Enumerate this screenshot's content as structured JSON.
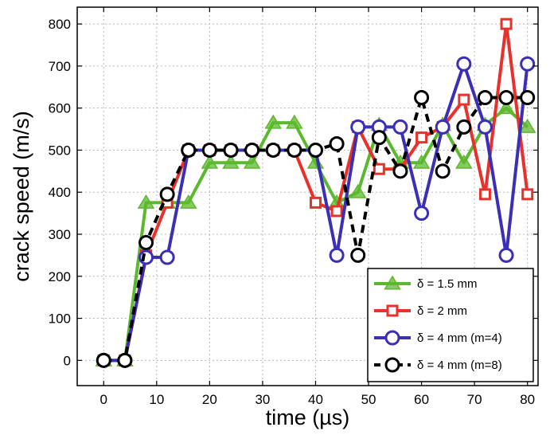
{
  "chart_data": {
    "type": "line",
    "title": "",
    "xlabel": "time (µs)",
    "ylabel": "crack speed (m/s)",
    "xlim": [
      -5,
      82
    ],
    "ylim": [
      -60,
      840
    ],
    "xticks": [
      0,
      10,
      20,
      30,
      40,
      50,
      60,
      70,
      80
    ],
    "yticks": [
      0,
      100,
      200,
      300,
      400,
      500,
      600,
      700,
      800
    ],
    "grid": true,
    "legend_position": "bottom-right",
    "series": [
      {
        "name": "δ = 1.5 mm",
        "color": "#5cb82e",
        "marker": "triangle",
        "line_style": "solid",
        "x": [
          0,
          4,
          8,
          12,
          16,
          20,
          24,
          28,
          32,
          36,
          40,
          44,
          48,
          52,
          56,
          60,
          64,
          68,
          72,
          76,
          80
        ],
        "y": [
          0,
          0,
          375,
          375,
          375,
          470,
          470,
          470,
          565,
          565,
          470,
          375,
          400,
          560,
          470,
          470,
          560,
          470,
          560,
          600,
          555
        ]
      },
      {
        "name": "δ = 2 mm",
        "color": "#e8312a",
        "marker": "square",
        "line_style": "solid",
        "x": [
          0,
          4,
          8,
          12,
          16,
          20,
          24,
          28,
          32,
          36,
          40,
          44,
          48,
          52,
          56,
          60,
          64,
          68,
          72,
          76,
          80
        ],
        "y": [
          0,
          0,
          250,
          375,
          500,
          500,
          500,
          500,
          500,
          500,
          375,
          355,
          555,
          455,
          455,
          530,
          555,
          620,
          395,
          800,
          395
        ]
      },
      {
        "name": "δ = 4 mm (m=4)",
        "color": "#3a2fb5",
        "marker": "circle",
        "line_style": "solid",
        "x": [
          0,
          4,
          8,
          12,
          16,
          20,
          24,
          28,
          32,
          36,
          40,
          44,
          48,
          52,
          56,
          60,
          64,
          68,
          72,
          76,
          80
        ],
        "y": [
          0,
          0,
          245,
          245,
          500,
          500,
          500,
          500,
          500,
          500,
          500,
          250,
          555,
          555,
          555,
          350,
          555,
          705,
          555,
          250,
          705
        ]
      },
      {
        "name": "δ = 4 mm (m=8)",
        "color": "#000000",
        "marker": "circle",
        "line_style": "dashed",
        "x": [
          0,
          4,
          8,
          12,
          16,
          20,
          24,
          28,
          32,
          36,
          40,
          44,
          48,
          52,
          56,
          60,
          64,
          68,
          72,
          76,
          80
        ],
        "y": [
          0,
          0,
          280,
          395,
          500,
          500,
          500,
          500,
          500,
          500,
          500,
          515,
          250,
          530,
          450,
          625,
          450,
          555,
          625,
          625,
          625
        ]
      }
    ]
  }
}
